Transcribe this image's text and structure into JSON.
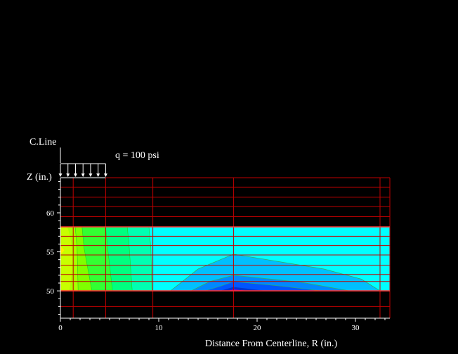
{
  "labels": {
    "centerline": "C.Line",
    "load": "q = 100 psi",
    "z_axis": "Z (in.)",
    "x_axis": "Distance From Centerline, R (in.)"
  },
  "chart_data": {
    "type": "contour",
    "xlabel": "Distance From Centerline, R (in.)",
    "ylabel": "Z (in.)",
    "xlim": [
      0,
      33.5
    ],
    "ylim": [
      46.5,
      64.5
    ],
    "x_ticks": [
      0,
      10,
      20,
      30
    ],
    "y_ticks": [
      50,
      55,
      60
    ],
    "load": {
      "q_psi": 100,
      "r_start": 0,
      "r_end": 4.6
    },
    "layer_boundaries_z": [
      50,
      58.2
    ],
    "mesh_r": [
      0,
      1.3,
      4.6,
      9.4,
      17.6,
      32.5,
      33.5
    ],
    "mesh_z": [
      46.5,
      48,
      50,
      51.2,
      52.1,
      53.3,
      54.6,
      55.8,
      57,
      58.2,
      59.5,
      60.8,
      62,
      63.3,
      64.5
    ],
    "colors": {
      "grid": "#c00000",
      "band_1": "#aaff00",
      "band_2": "#80ff00",
      "band_3": "#33ff33",
      "band_4": "#00ff80",
      "band_5": "#00ffb2",
      "background": "#00ffff",
      "band_6": "#00bfff",
      "band_7": "#0088ff",
      "band_8": "#0055ff",
      "band_9": "#0033cc",
      "peak": "#9900cc"
    }
  }
}
